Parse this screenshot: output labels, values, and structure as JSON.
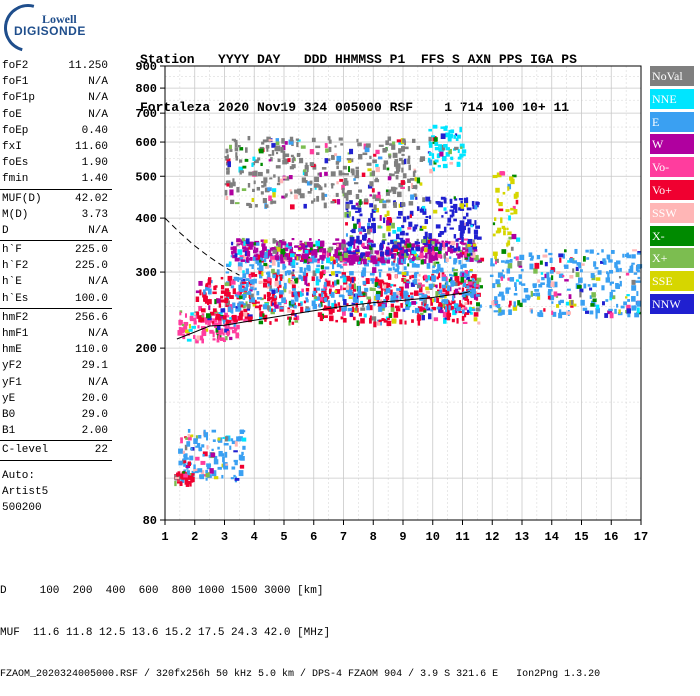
{
  "logo": {
    "line1": "Lowell",
    "line2": "DIGISONDE"
  },
  "header": {
    "row1": "Station   YYYY DAY   DDD HHMMSS P1  FFS S AXN PPS IGA PS",
    "row2": "Fortaleza 2020 Nov19 324 005000 RSF    1 714 100 10+ 11"
  },
  "params": {
    "group1": [
      {
        "label": "foF2",
        "value": "11.250"
      },
      {
        "label": "foF1",
        "value": "N/A"
      },
      {
        "label": "foF1p",
        "value": "N/A"
      },
      {
        "label": "foE",
        "value": "N/A"
      },
      {
        "label": "foEp",
        "value": "0.40"
      },
      {
        "label": "fxI",
        "value": "11.60"
      },
      {
        "label": "foEs",
        "value": "1.90"
      },
      {
        "label": "fmin",
        "value": "1.40"
      }
    ],
    "group2": [
      {
        "label": "MUF(D)",
        "value": "42.02"
      },
      {
        "label": "M(D)",
        "value": "3.73"
      },
      {
        "label": "D",
        "value": "N/A"
      }
    ],
    "group3": [
      {
        "label": "h`F",
        "value": "225.0"
      },
      {
        "label": "h`F2",
        "value": "225.0"
      },
      {
        "label": "h`E",
        "value": "N/A"
      },
      {
        "label": "h`Es",
        "value": "100.0"
      }
    ],
    "group4": [
      {
        "label": "hmF2",
        "value": "256.6"
      },
      {
        "label": "hmF1",
        "value": "N/A"
      },
      {
        "label": "hmE",
        "value": "110.0"
      },
      {
        "label": "yF2",
        "value": "29.1"
      },
      {
        "label": "yF1",
        "value": "N/A"
      },
      {
        "label": "yE",
        "value": "20.0"
      },
      {
        "label": "B0",
        "value": "29.0"
      },
      {
        "label": "B1",
        "value": "2.00"
      }
    ],
    "group5": [
      {
        "label": "C-level",
        "value": "22"
      }
    ],
    "autoscale": [
      "Auto:",
      "Artist5",
      "500200"
    ]
  },
  "legend": [
    {
      "label": "NoVal",
      "color": "#7f7f7f"
    },
    {
      "label": "NNE",
      "color": "#00e5ff"
    },
    {
      "label": "E",
      "color": "#3aa0f2"
    },
    {
      "label": "W",
      "color": "#b0009f"
    },
    {
      "label": "Vo-",
      "color": "#ff3d9e"
    },
    {
      "label": "Vo+",
      "color": "#f00030"
    },
    {
      "label": "SSW",
      "color": "#ffb6b6"
    },
    {
      "label": "X-",
      "color": "#008a00"
    },
    {
      "label": "X+",
      "color": "#7cbd50"
    },
    {
      "label": "SSE",
      "color": "#d6d600"
    },
    {
      "label": "NNW",
      "color": "#2020d0"
    }
  ],
  "footer": {
    "row1": "D     100  200  400  600  800 1000 1500 3000 [km]",
    "row2": "MUF  11.6 11.8 12.5 13.6 15.2 17.5 24.3 42.0 [MHz]",
    "row3": "FZAOM_2020324005000.RSF / 320fx256h 50 kHz 5.0 km / DPS-4 FZAOM 904 / 3.9 S 321.6 E   Ion2Png 1.3.20"
  },
  "chart_data": {
    "type": "scatter",
    "xlabel": "",
    "ylabel": "",
    "xlim": [
      1,
      17
    ],
    "ylim": [
      80,
      900
    ],
    "yscale": "log",
    "xticks": [
      1,
      2,
      3,
      4,
      5,
      6,
      7,
      8,
      9,
      10,
      11,
      12,
      13,
      14,
      15,
      16,
      17
    ],
    "yticks": [
      80,
      200,
      300,
      400,
      500,
      600,
      700,
      800,
      900
    ],
    "grid": true,
    "legend_position": "right",
    "trace_curve": {
      "x": [
        1.4,
        2.0,
        2.5,
        3.0,
        4.0,
        5.0,
        6.0,
        7.0,
        8.0,
        9.0,
        10.0,
        10.5,
        11.0,
        11.25
      ],
      "y": [
        210,
        218,
        225,
        226,
        232,
        238,
        244,
        250,
        255,
        258,
        262,
        265,
        268,
        270
      ]
    },
    "dashed_curve": {
      "x": [
        1.0,
        1.5,
        2.0,
        2.5,
        3.0,
        3.5
      ],
      "y": [
        400,
        370,
        345,
        325,
        308,
        295
      ]
    },
    "echo_regions": [
      {
        "x": [
          1.4,
          3.4
        ],
        "y": [
          210,
          245
        ],
        "class": "Vo-"
      },
      {
        "x": [
          2.0,
          11.6
        ],
        "y": [
          230,
          300
        ],
        "class": "Vo+"
      },
      {
        "x": [
          3.0,
          11.6
        ],
        "y": [
          245,
          330
        ],
        "class": "E"
      },
      {
        "x": [
          3.2,
          11.4
        ],
        "y": [
          320,
          360
        ],
        "class": "W"
      },
      {
        "x": [
          7.0,
          11.5
        ],
        "y": [
          330,
          450
        ],
        "class": "NNW"
      },
      {
        "x": [
          3.0,
          9.6
        ],
        "y": [
          430,
          620
        ],
        "class": "NoVal"
      },
      {
        "x": [
          9.8,
          11.0
        ],
        "y": [
          520,
          660
        ],
        "class": "NNE"
      },
      {
        "x": [
          11.9,
          16.9
        ],
        "y": [
          240,
          340
        ],
        "class": "E"
      },
      {
        "x": [
          12.0,
          12.8
        ],
        "y": [
          330,
          520
        ],
        "class": "SSE"
      },
      {
        "x": [
          1.4,
          3.6
        ],
        "y": [
          100,
          130
        ],
        "class": "E"
      },
      {
        "x": [
          1.3,
          1.9
        ],
        "y": [
          98,
          104
        ],
        "class": "Vo+"
      }
    ]
  }
}
